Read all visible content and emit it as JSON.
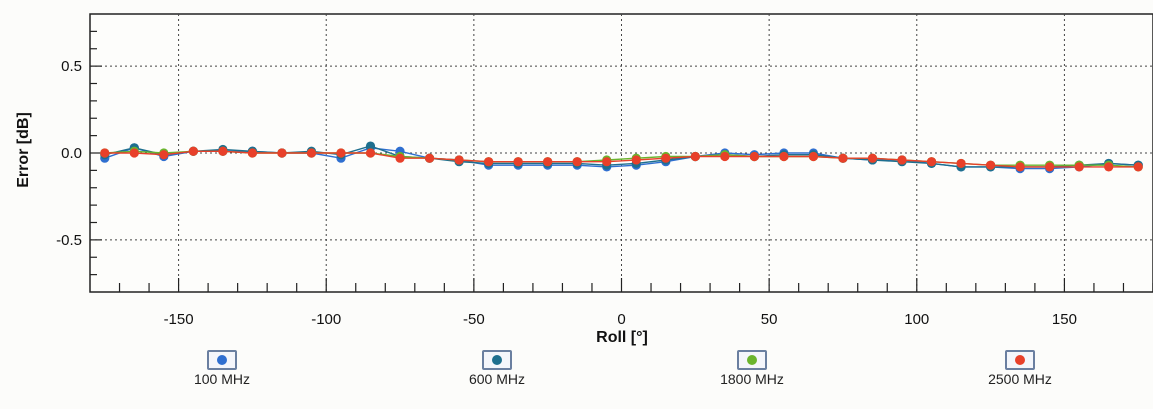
{
  "chart_data": {
    "type": "line",
    "xlabel": "Roll [°]",
    "ylabel": "Error [dB]",
    "xlim": [
      -180,
      180
    ],
    "ylim": [
      -0.8,
      0.8
    ],
    "x_ticks": [
      -150,
      -100,
      -50,
      0,
      50,
      100,
      150
    ],
    "x_tick_labels": [
      "-150",
      "-100",
      "-50",
      "0",
      "50",
      "100",
      "150"
    ],
    "y_ticks": [
      0.5,
      0.0,
      -0.5
    ],
    "y_tick_labels": [
      "0.5",
      "0.0",
      "-0.5"
    ],
    "grid": true,
    "legend_position": "bottom",
    "x": [
      -175,
      -165,
      -155,
      -145,
      -135,
      -125,
      -115,
      -105,
      -95,
      -85,
      -75,
      -65,
      -55,
      -45,
      -35,
      -25,
      -15,
      -5,
      5,
      15,
      25,
      35,
      45,
      55,
      65,
      75,
      85,
      95,
      105,
      115,
      125,
      135,
      145,
      155,
      165,
      175
    ],
    "series": [
      {
        "name": "100 MHz",
        "color": "#2f6fd0",
        "values": [
          -0.03,
          0.03,
          -0.02,
          0.01,
          0.01,
          0.01,
          0.0,
          0.0,
          -0.03,
          0.03,
          0.01,
          -0.03,
          -0.04,
          -0.07,
          -0.07,
          -0.07,
          -0.07,
          -0.08,
          -0.07,
          -0.05,
          -0.02,
          0.0,
          -0.01,
          0.0,
          0.0,
          -0.03,
          -0.04,
          -0.04,
          -0.06,
          -0.08,
          -0.08,
          -0.09,
          -0.09,
          -0.08,
          -0.06,
          -0.07
        ]
      },
      {
        "name": "600 MHz",
        "color": "#1e6f8e",
        "values": [
          -0.01,
          0.03,
          -0.01,
          0.01,
          0.02,
          0.01,
          0.0,
          0.01,
          -0.01,
          0.04,
          -0.02,
          -0.03,
          -0.05,
          -0.06,
          -0.06,
          -0.06,
          -0.06,
          -0.07,
          -0.06,
          -0.04,
          -0.02,
          -0.01,
          -0.02,
          -0.01,
          -0.01,
          -0.03,
          -0.04,
          -0.05,
          -0.06,
          -0.08,
          -0.08,
          -0.08,
          -0.08,
          -0.07,
          -0.06,
          -0.07
        ]
      },
      {
        "name": "1800 MHz",
        "color": "#6ab42d",
        "values": [
          0.0,
          0.01,
          0.0,
          0.01,
          0.01,
          0.0,
          0.0,
          0.0,
          0.0,
          0.0,
          -0.02,
          -0.03,
          -0.04,
          -0.05,
          -0.05,
          -0.05,
          -0.05,
          -0.04,
          -0.03,
          -0.02,
          -0.02,
          -0.01,
          -0.02,
          -0.02,
          -0.02,
          -0.03,
          -0.03,
          -0.04,
          -0.05,
          -0.06,
          -0.07,
          -0.07,
          -0.07,
          -0.07,
          -0.07,
          -0.08
        ]
      },
      {
        "name": "2500 MHz",
        "color": "#e8402a",
        "values": [
          0.0,
          0.0,
          -0.01,
          0.01,
          0.01,
          0.0,
          0.0,
          0.0,
          0.0,
          0.0,
          -0.03,
          -0.03,
          -0.04,
          -0.05,
          -0.05,
          -0.05,
          -0.05,
          -0.05,
          -0.04,
          -0.03,
          -0.02,
          -0.02,
          -0.02,
          -0.02,
          -0.02,
          -0.03,
          -0.03,
          -0.04,
          -0.05,
          -0.06,
          -0.07,
          -0.08,
          -0.08,
          -0.08,
          -0.08,
          -0.08
        ]
      }
    ]
  }
}
